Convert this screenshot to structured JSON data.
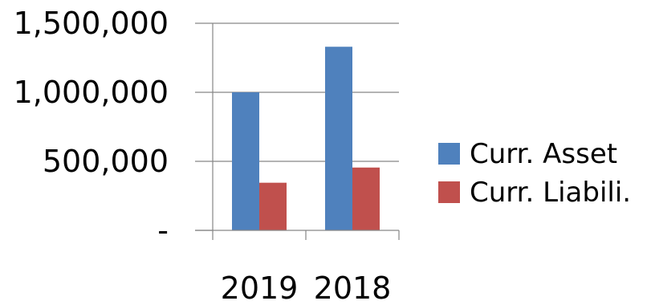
{
  "chart_data": {
    "type": "bar",
    "categories": [
      "2019",
      "2018"
    ],
    "series": [
      {
        "name": "Curr. Asset",
        "values": [
          1000000,
          1330000
        ],
        "color": "#4F81BD"
      },
      {
        "name": "Curr. Liabili.",
        "values": [
          345000,
          455000
        ],
        "color": "#C0504D"
      }
    ],
    "y_ticks": [
      {
        "value": 0,
        "label": "-"
      },
      {
        "value": 500000,
        "label": "500,000"
      },
      {
        "value": 1000000,
        "label": "1,000,000"
      },
      {
        "value": 1500000,
        "label": "1,500,000"
      }
    ],
    "ylim": [
      0,
      1500000
    ],
    "grid": true,
    "legend_position": "right",
    "title": "",
    "xlabel": "",
    "ylabel": ""
  }
}
